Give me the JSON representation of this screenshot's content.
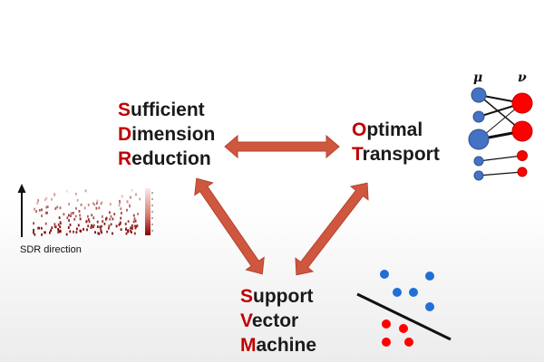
{
  "sdr": {
    "lines": [
      {
        "initial": "S",
        "rest": "ufficient"
      },
      {
        "initial": "D",
        "rest": "imension"
      },
      {
        "initial": "R",
        "rest": "eduction"
      }
    ]
  },
  "ot": {
    "lines": [
      {
        "initial": "O",
        "rest": "ptimal"
      },
      {
        "initial": "T",
        "rest": "ransport"
      }
    ]
  },
  "svm": {
    "lines": [
      {
        "initial": "S",
        "rest": "upport"
      },
      {
        "initial": "V",
        "rest": "ector"
      },
      {
        "initial": "M",
        "rest": "achine"
      }
    ]
  },
  "sdr_caption": "SDR direction",
  "transport_labels": {
    "mu": "μ",
    "nu": "ν"
  },
  "colors": {
    "initial": "#c00000",
    "arrow": "#d0573f",
    "arrow_stroke": "#b6432c",
    "source_mass": "#4472c4",
    "target_mass": "#ff0000",
    "class_blue": "#1f6fd6",
    "class_red": "#ff0000"
  }
}
